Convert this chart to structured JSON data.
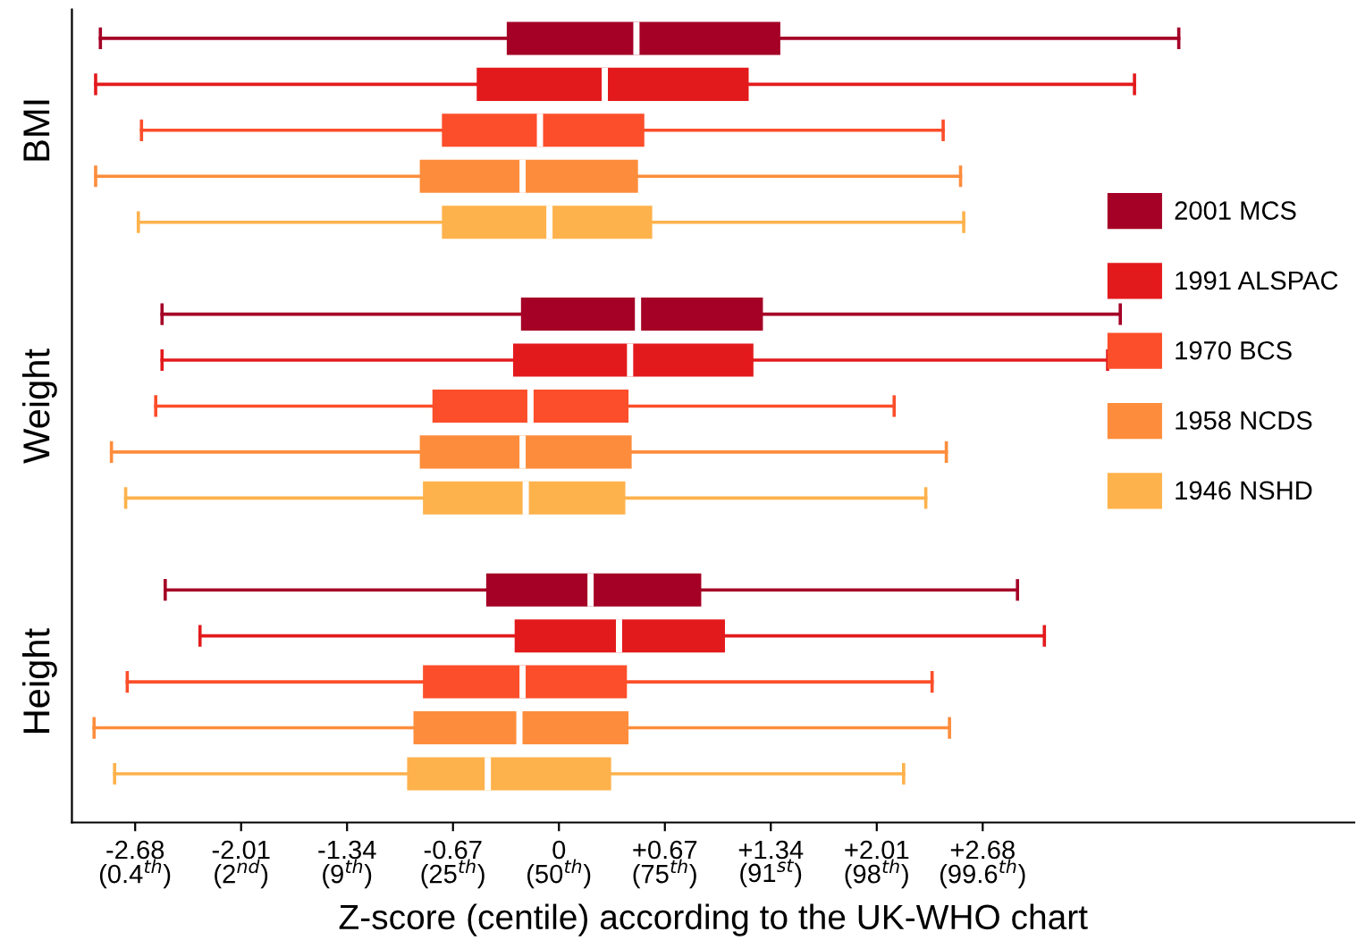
{
  "chart_data": {
    "type": "box",
    "orientation": "horizontal",
    "xlabel": "Z-score (centile) according to the UK-WHO chart",
    "categories": [
      "BMI",
      "Weight",
      "Height"
    ],
    "series": [
      {
        "name": "2001 MCS",
        "color": "#a50026",
        "boxes": [
          {
            "low": -2.9,
            "q1": -0.33,
            "median": 0.49,
            "q3": 1.4,
            "high": 3.92
          },
          {
            "low": -2.51,
            "q1": -0.24,
            "median": 0.5,
            "q3": 1.29,
            "high": 3.55
          },
          {
            "low": -2.49,
            "q1": -0.46,
            "median": 0.2,
            "q3": 0.9,
            "high": 2.9
          }
        ]
      },
      {
        "name": "1991 ALSPAC",
        "color": "#e31a1c",
        "boxes": [
          {
            "low": -2.93,
            "q1": -0.52,
            "median": 0.29,
            "q3": 1.2,
            "high": 3.64
          },
          {
            "low": -2.51,
            "q1": -0.29,
            "median": 0.45,
            "q3": 1.23,
            "high": 3.47
          },
          {
            "low": -2.27,
            "q1": -0.28,
            "median": 0.38,
            "q3": 1.05,
            "high": 3.07
          }
        ]
      },
      {
        "name": "1970 BCS",
        "color": "#fc4e2a",
        "boxes": [
          {
            "low": -2.64,
            "q1": -0.74,
            "median": -0.12,
            "q3": 0.54,
            "high": 2.43
          },
          {
            "low": -2.55,
            "q1": -0.8,
            "median": -0.18,
            "q3": 0.44,
            "high": 2.12
          },
          {
            "low": -2.73,
            "q1": -0.86,
            "median": -0.23,
            "q3": 0.43,
            "high": 2.36
          }
        ]
      },
      {
        "name": "1958 NCDS",
        "color": "#fd8d3c",
        "boxes": [
          {
            "low": -2.93,
            "q1": -0.88,
            "median": -0.23,
            "q3": 0.5,
            "high": 2.54
          },
          {
            "low": -2.83,
            "q1": -0.88,
            "median": -0.23,
            "q3": 0.46,
            "high": 2.45
          },
          {
            "low": -2.94,
            "q1": -0.92,
            "median": -0.25,
            "q3": 0.44,
            "high": 2.47
          }
        ]
      },
      {
        "name": "1946 NSHD",
        "color": "#feb24c",
        "boxes": [
          {
            "low": -2.66,
            "q1": -0.74,
            "median": -0.06,
            "q3": 0.59,
            "high": 2.56
          },
          {
            "low": -2.74,
            "q1": -0.86,
            "median": -0.21,
            "q3": 0.42,
            "high": 2.32
          },
          {
            "low": -2.81,
            "q1": -0.96,
            "median": -0.45,
            "q3": 0.33,
            "high": 2.18
          }
        ]
      }
    ],
    "xlim": [
      -3.08,
      5.03
    ],
    "xticks": [
      {
        "value": -2.68,
        "label": "-2.68"
      },
      {
        "value": -2.01,
        "label": "-2.01"
      },
      {
        "value": -1.34,
        "label": "-1.34"
      },
      {
        "value": -0.67,
        "label": "-0.67"
      },
      0,
      {
        "value": 0.67,
        "label": "+0.67"
      },
      {
        "value": 1.34,
        "label": "+1.34"
      },
      {
        "value": 2.01,
        "label": "+2.01"
      },
      {
        "value": 2.68,
        "label": "+2.68"
      }
    ],
    "annotations": [
      "(0.4$^{th}$)",
      "(2$^{nd}$)",
      "(9$^{th}$)",
      "(25$^{th}$)",
      "(50$^{th}$)",
      "(75$^{th}$)",
      "(91$^{st}$)",
      "(98$^{th}$)",
      "(99.6$^{th}$)"
    ],
    "legend": "right",
    "grid": false
  }
}
